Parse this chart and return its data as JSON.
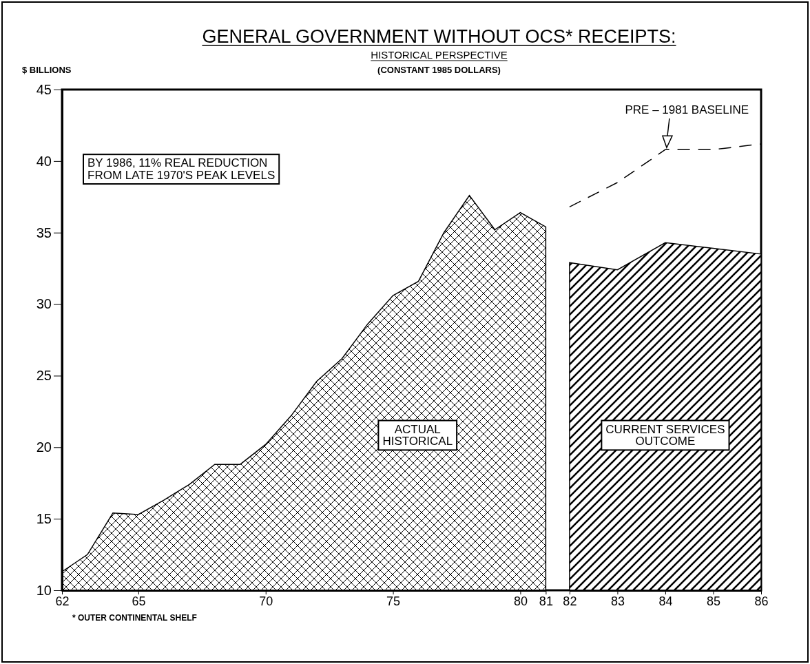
{
  "chart_data": [
    {
      "type": "area",
      "title": "GENERAL GOVERNMENT WITHOUT OCS* RECEIPTS:",
      "subtitle": "HISTORICAL PERSPECTIVE",
      "ylabel": "$ BILLIONS",
      "annotations": [
        "(CONSTANT 1985 DOLLARS)",
        "BY 1986, 11% REAL REDUCTION FROM LATE 1970'S PEAK LEVELS",
        "* OUTER CONTINENTAL SHELF"
      ],
      "xlim": [
        62,
        81
      ],
      "xticks": [
        62,
        65,
        70,
        75,
        80,
        81
      ],
      "ylim": [
        10,
        45
      ],
      "yticks": [
        10,
        15,
        20,
        25,
        30,
        35,
        40,
        45
      ],
      "grid": false,
      "legend": false,
      "series": [
        {
          "name": "ACTUAL HISTORICAL",
          "type": "area",
          "color": "#000000",
          "x": [
            62,
            63,
            64,
            65,
            66,
            67,
            68,
            69,
            70,
            71,
            72,
            73,
            74,
            75,
            76,
            77,
            78,
            79,
            80,
            81
          ],
          "values": [
            11.3,
            12.5,
            15.4,
            15.3,
            16.3,
            17.4,
            18.8,
            18.8,
            20.2,
            22.2,
            24.6,
            26.2,
            28.6,
            30.6,
            31.6,
            35,
            37.6,
            35.2,
            36.4,
            35.4
          ]
        }
      ]
    },
    {
      "type": "area",
      "xlim": [
        82,
        86
      ],
      "xticks": [
        82,
        83,
        84,
        85,
        86
      ],
      "ylim": [
        10,
        45
      ],
      "tick_labels": "x",
      "grid": false,
      "legend": false,
      "series": [
        {
          "name": "CURRENT SERVICES OUTCOME",
          "type": "area",
          "color": "#000000",
          "x": [
            82,
            83,
            84,
            85,
            86
          ],
          "values": [
            32.9,
            32.4,
            34.3,
            33.9,
            33.5
          ]
        },
        {
          "name": "PRE – 1981 BASELINE",
          "type": "line",
          "line_style": "dashed",
          "color": "#000000",
          "x": [
            82,
            83,
            84,
            85,
            86
          ],
          "values": [
            36.8,
            38.5,
            40.8,
            40.8,
            41.2
          ]
        }
      ]
    }
  ]
}
